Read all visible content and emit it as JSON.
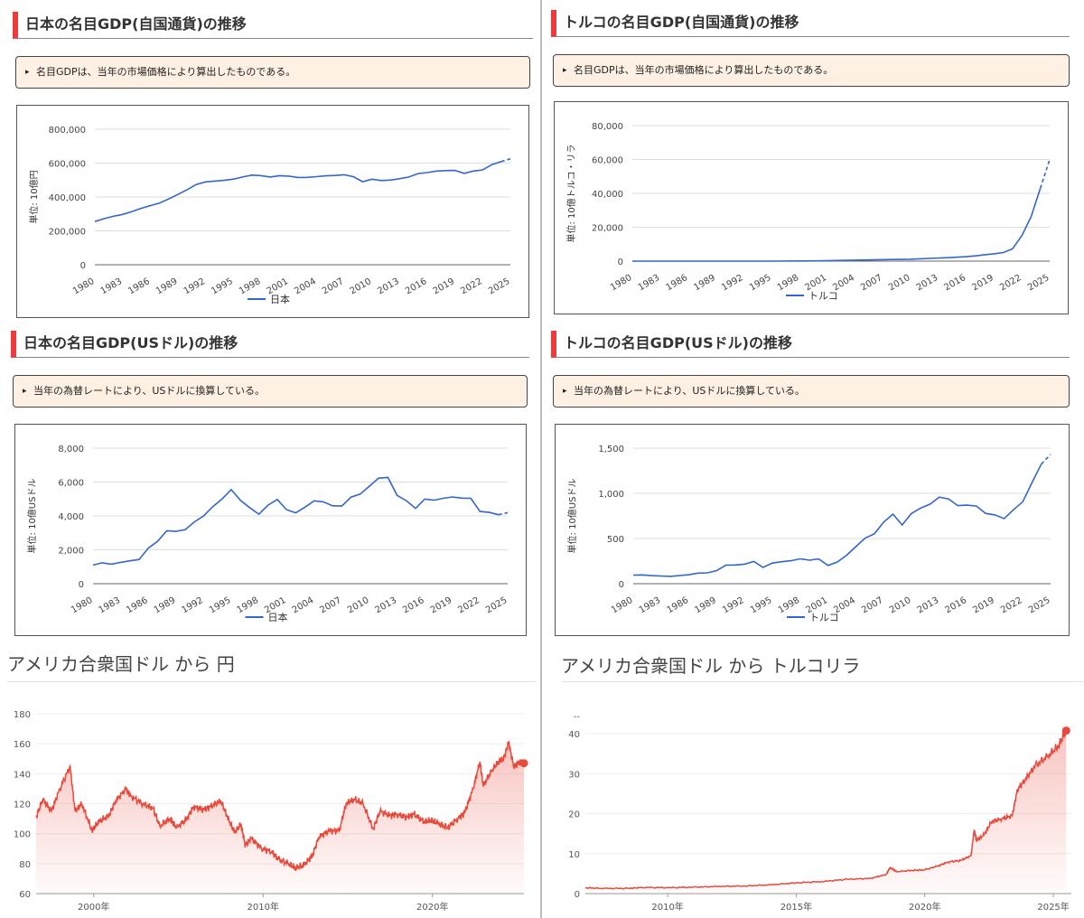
{
  "sections": [
    {
      "title": "日本の名目GDP(自国通貨)の推移",
      "note": "名目GDPは、当年の市場価格により算出したものである。",
      "note_icon": "triangle-bullet-icon",
      "chart_data": {
        "type": "line",
        "ylabel": "単位: 10億円",
        "legend": "日本",
        "legend_position": "bottom",
        "ylim": [
          0,
          800000
        ],
        "yticks": [
          0,
          200000,
          400000,
          600000,
          800000
        ],
        "ytick_labels": [
          "0",
          "200,000",
          "400,000",
          "600,000",
          "800,000"
        ],
        "xlim": [
          1980,
          2025
        ],
        "xticks": [
          1980,
          1983,
          1986,
          1989,
          1992,
          1995,
          1998,
          2001,
          2004,
          2007,
          2010,
          2013,
          2016,
          2019,
          2022,
          2025
        ],
        "forecast_from": 2024,
        "x": [
          1980,
          1981,
          1982,
          1983,
          1984,
          1985,
          1986,
          1987,
          1988,
          1989,
          1990,
          1991,
          1992,
          1993,
          1994,
          1995,
          1996,
          1997,
          1998,
          1999,
          2000,
          2001,
          2002,
          2003,
          2004,
          2005,
          2006,
          2007,
          2008,
          2009,
          2010,
          2011,
          2012,
          2013,
          2014,
          2015,
          2016,
          2017,
          2018,
          2019,
          2020,
          2021,
          2022,
          2023,
          2024,
          2025
        ],
        "values": [
          255000,
          272000,
          286000,
          297000,
          313000,
          333000,
          349000,
          364000,
          389000,
          415000,
          443000,
          474000,
          489000,
          494000,
          498000,
          505000,
          518000,
          529000,
          526000,
          518000,
          526000,
          523000,
          515000,
          516000,
          520000,
          525000,
          527000,
          531000,
          520000,
          490000,
          505000,
          497000,
          500000,
          508000,
          518000,
          538000,
          544000,
          553000,
          556000,
          557000,
          539000,
          553000,
          560000,
          591000,
          609000,
          625000
        ],
        "color": "#3366cc"
      }
    },
    {
      "title": "トルコの名目GDP(自国通貨)の推移",
      "note": "名目GDPは、当年の市場価格により算出したものである。",
      "note_icon": "triangle-bullet-icon",
      "chart_data": {
        "type": "line",
        "ylabel": "単位: 10億トルコ・リラ",
        "legend": "トルコ",
        "legend_position": "bottom",
        "ylim": [
          0,
          80000
        ],
        "yticks": [
          0,
          20000,
          40000,
          60000,
          80000
        ],
        "ytick_labels": [
          "0",
          "20,000",
          "40,000",
          "60,000",
          "80,000"
        ],
        "xlim": [
          1980,
          2025
        ],
        "xticks": [
          1980,
          1983,
          1986,
          1989,
          1992,
          1995,
          1998,
          2001,
          2004,
          2007,
          2010,
          2013,
          2016,
          2019,
          2022,
          2025
        ],
        "forecast_from": 2024,
        "x": [
          1980,
          1985,
          1990,
          1995,
          2000,
          2002,
          2004,
          2006,
          2008,
          2010,
          2012,
          2014,
          2016,
          2017,
          2018,
          2019,
          2020,
          2021,
          2022,
          2023,
          2024,
          2025
        ],
        "values": [
          0,
          0,
          0,
          10,
          170,
          360,
          560,
          760,
          950,
          1100,
          1580,
          2040,
          2630,
          3110,
          3760,
          4320,
          5050,
          7250,
          15010,
          26280,
          43000,
          60000
        ],
        "color": "#3366cc"
      }
    },
    {
      "title": "日本の名目GDP(USドル)の推移",
      "note": "当年の為替レートにより、USドルに換算している。",
      "note_icon": "triangle-bullet-icon",
      "chart_data": {
        "type": "line",
        "ylabel": "単位: 10億USドル",
        "legend": "日本",
        "legend_position": "bottom",
        "ylim": [
          0,
          8000
        ],
        "yticks": [
          0,
          2000,
          4000,
          6000,
          8000
        ],
        "ytick_labels": [
          "0",
          "2,000",
          "4,000",
          "6,000",
          "8,000"
        ],
        "xlim": [
          1980,
          2025
        ],
        "xticks": [
          1980,
          1983,
          1986,
          1989,
          1992,
          1995,
          1998,
          2001,
          2004,
          2007,
          2010,
          2013,
          2016,
          2019,
          2022,
          2025
        ],
        "forecast_from": 2024,
        "x": [
          1980,
          1981,
          1982,
          1983,
          1984,
          1985,
          1986,
          1987,
          1988,
          1989,
          1990,
          1991,
          1992,
          1993,
          1994,
          1995,
          1996,
          1997,
          1998,
          1999,
          2000,
          2001,
          2002,
          2003,
          2004,
          2005,
          2006,
          2007,
          2008,
          2009,
          2010,
          2011,
          2012,
          2013,
          2014,
          2015,
          2016,
          2017,
          2018,
          2019,
          2020,
          2021,
          2022,
          2023,
          2024,
          2025
        ],
        "values": [
          1100,
          1230,
          1150,
          1260,
          1350,
          1430,
          2100,
          2500,
          3120,
          3090,
          3190,
          3650,
          4000,
          4550,
          5000,
          5550,
          4920,
          4490,
          4100,
          4640,
          4970,
          4370,
          4180,
          4520,
          4890,
          4830,
          4600,
          4580,
          5110,
          5290,
          5760,
          6230,
          6270,
          5210,
          4900,
          4440,
          5000,
          4930,
          5040,
          5120,
          5050,
          5040,
          4260,
          4210,
          4070,
          4190
        ],
        "color": "#3366cc"
      }
    },
    {
      "title": "トルコの名目GDP(USドル)の推移",
      "note": "当年の為替レートにより、USドルに換算している。",
      "note_icon": "triangle-bullet-icon",
      "chart_data": {
        "type": "line",
        "ylabel": "単位: 10億USドル",
        "legend": "トルコ",
        "legend_position": "bottom",
        "ylim": [
          0,
          1500
        ],
        "yticks": [
          0,
          500,
          1000,
          1500
        ],
        "ytick_labels": [
          "0",
          "500",
          "1,000",
          "1,500"
        ],
        "xlim": [
          1980,
          2025
        ],
        "xticks": [
          1980,
          1983,
          1986,
          1989,
          1992,
          1995,
          1998,
          2001,
          2004,
          2007,
          2010,
          2013,
          2016,
          2019,
          2022,
          2025
        ],
        "forecast_from": 2024,
        "x": [
          1980,
          1981,
          1982,
          1983,
          1984,
          1985,
          1986,
          1987,
          1988,
          1989,
          1990,
          1991,
          1992,
          1993,
          1994,
          1995,
          1996,
          1997,
          1998,
          1999,
          2000,
          2001,
          2002,
          2003,
          2004,
          2005,
          2006,
          2007,
          2008,
          2009,
          2010,
          2011,
          2012,
          2013,
          2014,
          2015,
          2016,
          2017,
          2018,
          2019,
          2020,
          2021,
          2022,
          2023,
          2024,
          2025
        ],
        "values": [
          95,
          97,
          89,
          85,
          81,
          90,
          99,
          117,
          120,
          145,
          206,
          207,
          216,
          246,
          180,
          228,
          243,
          254,
          275,
          260,
          274,
          202,
          240,
          314,
          410,
          505,
          552,
          681,
          770,
          650,
          777,
          838,
          880,
          958,
          938,
          864,
          869,
          859,
          778,
          761,
          720,
          818,
          907,
          1120,
          1323,
          1430
        ],
        "color": "#3366cc"
      }
    }
  ],
  "fx": [
    {
      "title": "アメリカ合衆国ドル から 円",
      "chart_data": {
        "type": "area",
        "ylim": [
          60,
          180
        ],
        "yticks": [
          60,
          80,
          100,
          120,
          140,
          160,
          180
        ],
        "ytick_labels": [
          "60",
          "80",
          "100",
          "120",
          "140",
          "160",
          "180"
        ],
        "xlim": [
          1996.6,
          2025.4
        ],
        "xticks": [
          2000,
          2010,
          2020
        ],
        "xtick_labels": [
          "2000年",
          "2010年",
          "2020年"
        ],
        "x": [
          1996.6,
          1997.0,
          1997.5,
          1998.0,
          1998.6,
          1998.9,
          1999.3,
          1999.9,
          2000.3,
          2000.9,
          2001.3,
          2001.9,
          2002.2,
          2002.9,
          2003.5,
          2003.9,
          2004.5,
          2004.9,
          2005.5,
          2005.9,
          2006.5,
          2006.9,
          2007.5,
          2007.9,
          2008.3,
          2008.7,
          2008.95,
          2009.3,
          2009.9,
          2010.5,
          2010.9,
          2011.5,
          2011.9,
          2012.4,
          2012.9,
          2013.3,
          2013.9,
          2014.5,
          2014.9,
          2015.4,
          2015.9,
          2016.5,
          2016.9,
          2017.5,
          2017.9,
          2018.5,
          2018.9,
          2019.5,
          2019.9,
          2020.3,
          2020.9,
          2021.5,
          2021.9,
          2022.4,
          2022.8,
          2023.0,
          2023.5,
          2023.9,
          2024.2,
          2024.5,
          2024.8,
          2025.2,
          2025.4
        ],
        "values": [
          111,
          123,
          115,
          130,
          145,
          115,
          120,
          102,
          108,
          112,
          122,
          130,
          125,
          120,
          117,
          105,
          110,
          104,
          110,
          118,
          116,
          118,
          122,
          111,
          101,
          106,
          92,
          97,
          90,
          88,
          83,
          80,
          77,
          79,
          85,
          98,
          102,
          102,
          120,
          123,
          120,
          103,
          115,
          112,
          113,
          111,
          113,
          108,
          109,
          107,
          104,
          110,
          114,
          130,
          148,
          132,
          142,
          148,
          150,
          161,
          145,
          148,
          147
        ],
        "color": "#e8493b"
      }
    },
    {
      "title": "アメリカ合衆国ドル から トルコリラ",
      "chart_data": {
        "type": "area",
        "ylim": [
          0,
          45
        ],
        "yticks": [
          0,
          10,
          20,
          30,
          40
        ],
        "ytick_labels": [
          "0",
          "10",
          "20",
          "30",
          "40"
        ],
        "top_label": "--",
        "xlim": [
          2006.8,
          2025.7
        ],
        "xticks": [
          2010,
          2015,
          2020,
          2025
        ],
        "xtick_labels": [
          "2010年",
          "2015年",
          "2020年",
          "2025年"
        ],
        "x": [
          2006.8,
          2007.5,
          2008.5,
          2009.0,
          2010.0,
          2011.0,
          2012.0,
          2013.0,
          2014.0,
          2015.0,
          2016.0,
          2017.0,
          2017.9,
          2018.5,
          2018.65,
          2018.9,
          2019.5,
          2020.0,
          2020.5,
          2020.9,
          2021.4,
          2021.8,
          2021.92,
          2022.0,
          2022.3,
          2022.6,
          2023.0,
          2023.4,
          2023.6,
          2023.9,
          2024.3,
          2024.8,
          2025.2,
          2025.5
        ],
        "values": [
          1.45,
          1.3,
          1.3,
          1.55,
          1.5,
          1.6,
          1.8,
          1.9,
          2.2,
          2.7,
          3.0,
          3.6,
          3.8,
          4.8,
          6.5,
          5.5,
          5.8,
          5.95,
          6.9,
          7.9,
          8.3,
          9.5,
          16.0,
          13.3,
          14.7,
          18.0,
          18.7,
          19.5,
          26.0,
          28.5,
          32.0,
          34.5,
          37.0,
          40.8
        ],
        "color": "#e8493b"
      }
    }
  ]
}
